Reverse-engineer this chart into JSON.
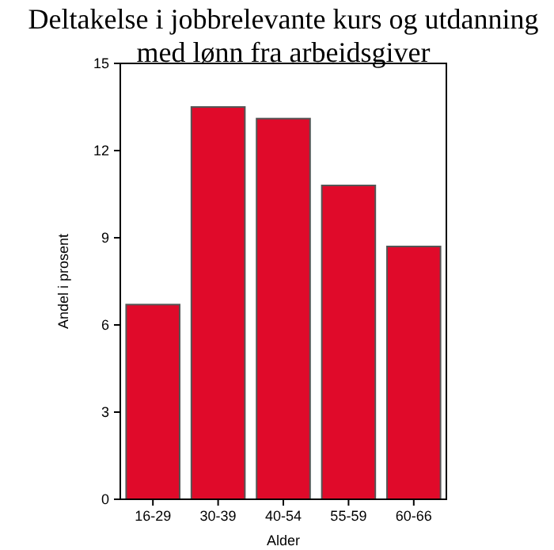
{
  "chart_data": {
    "type": "bar",
    "title": "Deltakelse i jobbrelevante kurs og utdanning\nmed lønn fra arbeidsgiver",
    "xlabel": "Alder",
    "ylabel": "Andel i prosent",
    "categories": [
      "16-29",
      "30-39",
      "40-54",
      "55-59",
      "60-66"
    ],
    "values": [
      6.7,
      13.5,
      13.1,
      10.8,
      8.7
    ],
    "color": "#e00a2a",
    "ylim": [
      0,
      15
    ],
    "yticks": [
      0,
      3,
      6,
      9,
      12,
      15
    ],
    "grid": false
  }
}
